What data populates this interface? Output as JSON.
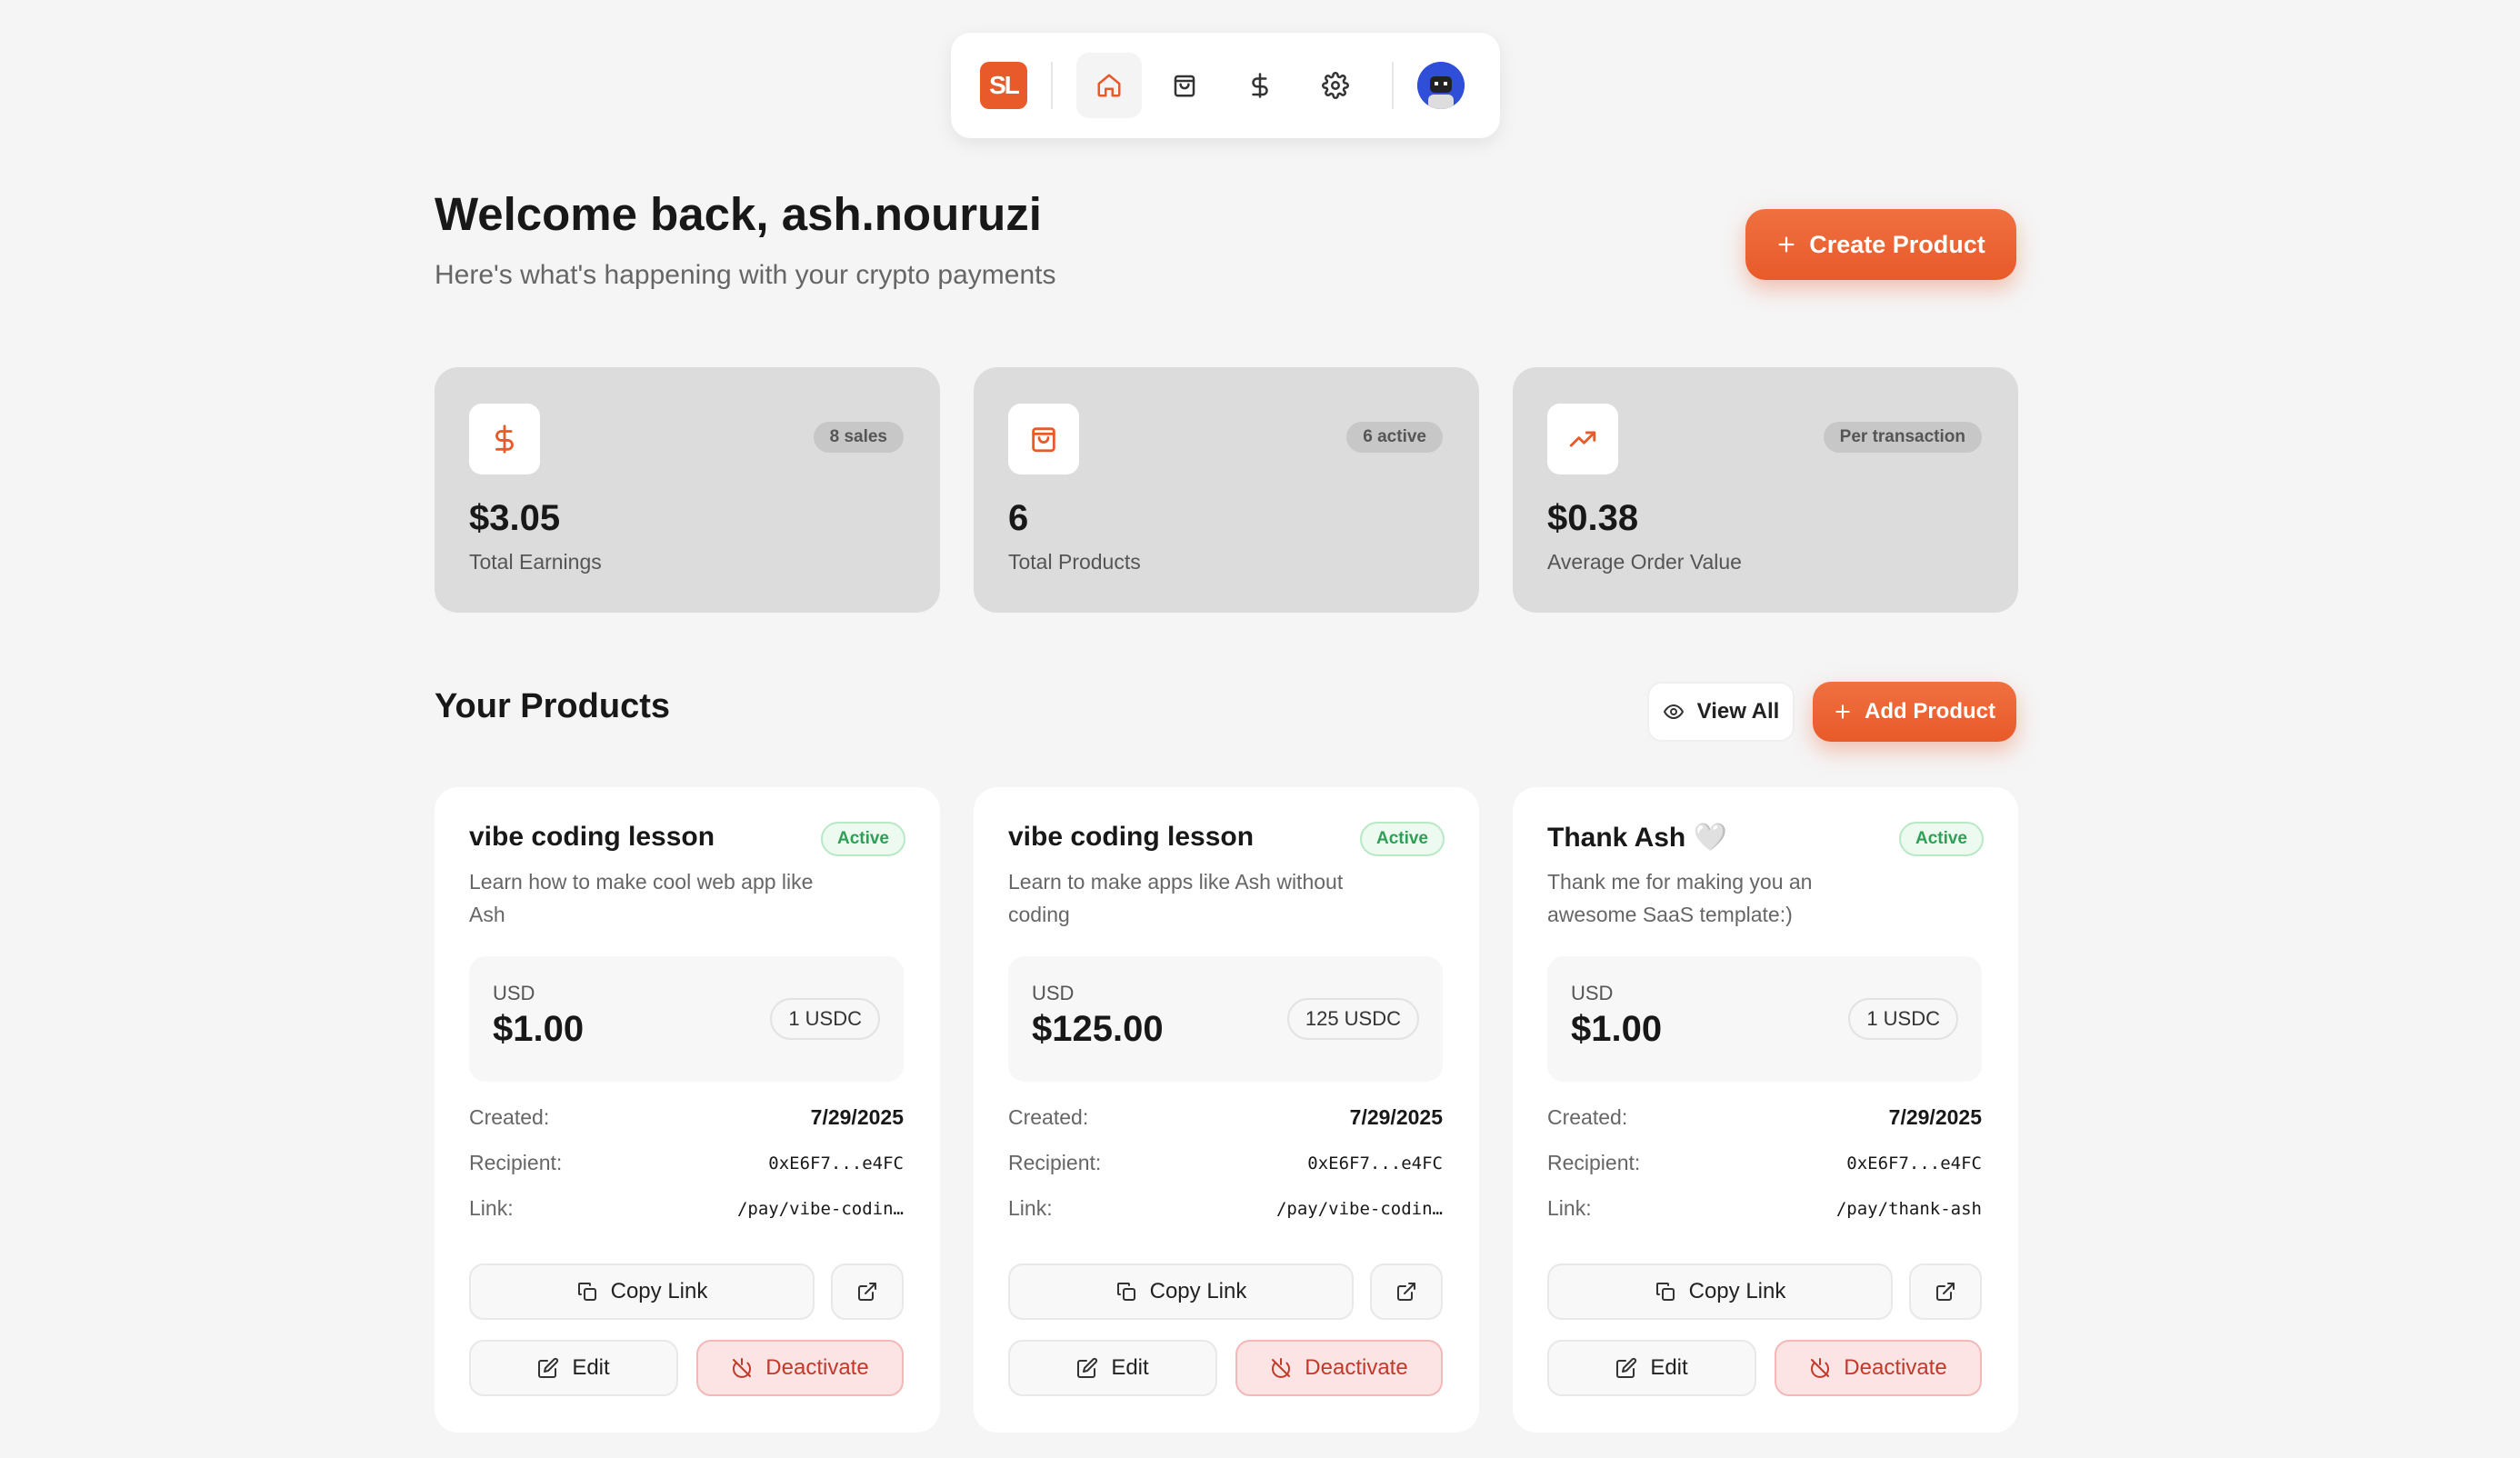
{
  "nav": {
    "logo_text": "SL",
    "items": [
      "home-icon",
      "shopping-bag-icon",
      "dollar-icon",
      "settings-icon"
    ],
    "active": "home-icon",
    "accent": "#e85a2a"
  },
  "header": {
    "welcome": "Welcome back, ash.nouruzi",
    "subtitle": "Here's what's happening with your crypto payments",
    "create_label": "Create Product"
  },
  "stats": [
    {
      "icon": "dollar-icon",
      "badge": "8 sales",
      "value": "$3.05",
      "label": "Total Earnings"
    },
    {
      "icon": "shopping-bag-icon",
      "badge": "6 active",
      "value": "6",
      "label": "Total Products"
    },
    {
      "icon": "trending-up-icon",
      "badge": "Per transaction",
      "value": "$0.38",
      "label": "Average Order Value"
    }
  ],
  "products_section": {
    "title": "Your Products",
    "view_all_label": "View All",
    "add_label": "Add Product"
  },
  "products": [
    {
      "title": "vibe coding lesson",
      "status": "Active",
      "description": "Learn how to make cool web app like Ash",
      "currency": "USD",
      "price": "$1.00",
      "usdc": "1 USDC",
      "created_label": "Created:",
      "created": "7/29/2025",
      "recipient_label": "Recipient:",
      "recipient": "0xE6F7...e4FC",
      "link_label": "Link:",
      "link": "/pay/vibe-codin…",
      "copy_label": "Copy Link",
      "edit_label": "Edit",
      "deactivate_label": "Deactivate"
    },
    {
      "title": "vibe coding lesson",
      "status": "Active",
      "description": "Learn to make apps like Ash without coding",
      "currency": "USD",
      "price": "$125.00",
      "usdc": "125 USDC",
      "created_label": "Created:",
      "created": "7/29/2025",
      "recipient_label": "Recipient:",
      "recipient": "0xE6F7...e4FC",
      "link_label": "Link:",
      "link": "/pay/vibe-codin…",
      "copy_label": "Copy Link",
      "edit_label": "Edit",
      "deactivate_label": "Deactivate"
    },
    {
      "title": "Thank Ash 🤍",
      "status": "Active",
      "description": "Thank me for making you an awesome SaaS template:)",
      "currency": "USD",
      "price": "$1.00",
      "usdc": "1 USDC",
      "created_label": "Created:",
      "created": "7/29/2025",
      "recipient_label": "Recipient:",
      "recipient": "0xE6F7...e4FC",
      "link_label": "Link:",
      "link": "/pay/thank-ash",
      "copy_label": "Copy Link",
      "edit_label": "Edit",
      "deactivate_label": "Deactivate"
    }
  ]
}
